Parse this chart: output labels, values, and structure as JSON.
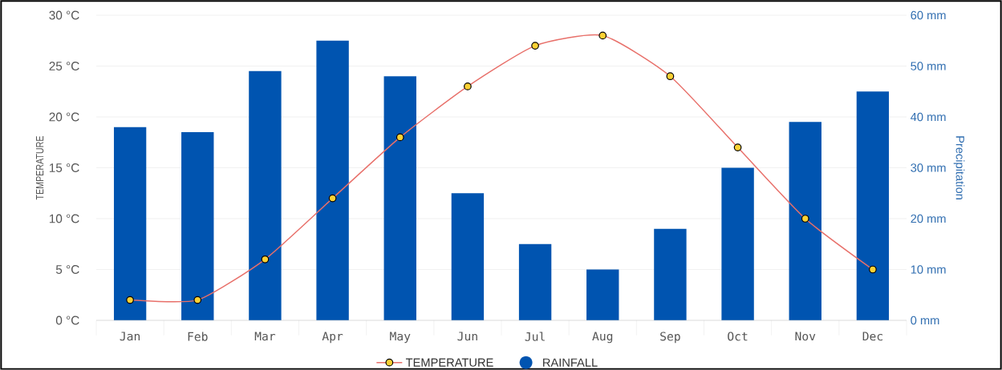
{
  "chart_data": {
    "type": "bar",
    "ylabel": "TEMPERATURE",
    "y2label": "Precipitation",
    "categories": [
      "Jan",
      "Feb",
      "Mar",
      "Apr",
      "May",
      "Jun",
      "Jul",
      "Aug",
      "Sep",
      "Oct",
      "Nov",
      "Dec"
    ],
    "series": [
      {
        "name": "TEMPERATURE",
        "type": "line",
        "axis": "y",
        "color": "#e8706a",
        "values": [
          2,
          2,
          6,
          12,
          18,
          23,
          27,
          28,
          24,
          17,
          10,
          5
        ]
      },
      {
        "name": "RAINFALL",
        "axis": "y2",
        "color": "#0054b0",
        "values": [
          38,
          37,
          49,
          55,
          48,
          25,
          15,
          10,
          18,
          30,
          39,
          45
        ]
      }
    ],
    "ylim": [
      0,
      30
    ],
    "yticks": [
      {
        "value": 0,
        "label": "0 °C"
      },
      {
        "value": 5,
        "label": "5 °C"
      },
      {
        "value": 10,
        "label": "10 °C"
      },
      {
        "value": 15,
        "label": "15 °C"
      },
      {
        "value": 20,
        "label": "20 °C"
      },
      {
        "value": 25,
        "label": "25 °C"
      },
      {
        "value": 30,
        "label": "30 °C"
      }
    ],
    "y2lim": [
      0,
      60
    ],
    "y2ticks": [
      {
        "value": 0,
        "label": "0 mm"
      },
      {
        "value": 10,
        "label": "10 mm"
      },
      {
        "value": 20,
        "label": "20 mm"
      },
      {
        "value": 30,
        "label": "30 mm"
      },
      {
        "value": 40,
        "label": "40 mm"
      },
      {
        "value": 50,
        "label": "50 mm"
      },
      {
        "value": 60,
        "label": "60 mm"
      }
    ],
    "grid": "y",
    "legend": "bottom",
    "marker": "circle",
    "line_style": "solid"
  }
}
